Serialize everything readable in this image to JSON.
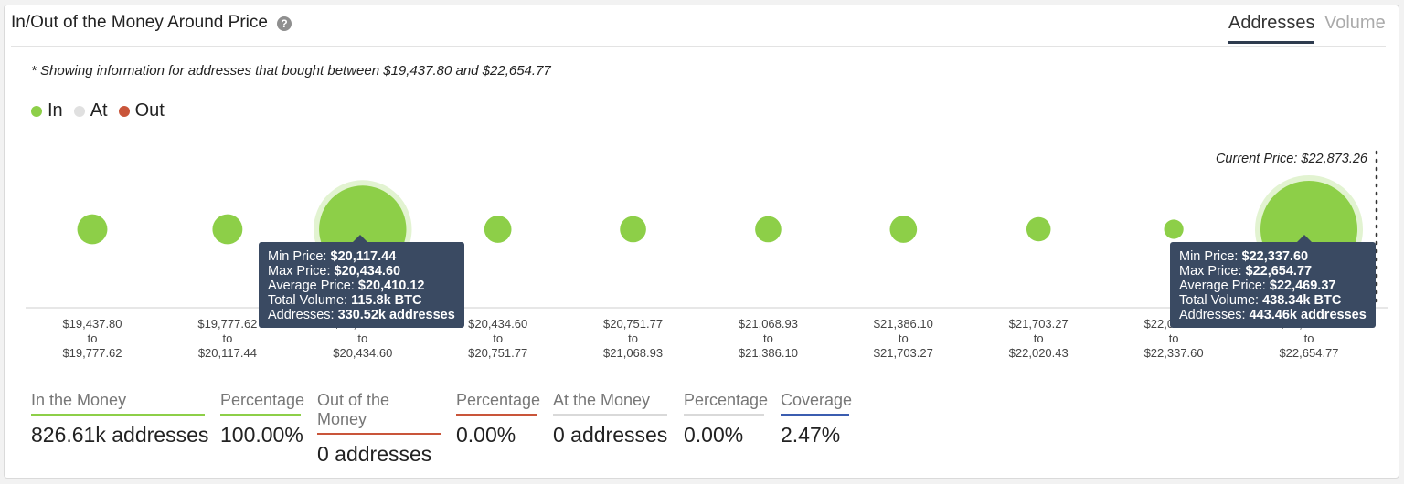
{
  "header": {
    "title": "In/Out of the Money Around Price",
    "help_glyph": "?",
    "tabs": [
      {
        "label": "Addresses",
        "active": true
      },
      {
        "label": "Volume",
        "active": false
      }
    ]
  },
  "note": "* Showing information for addresses that bought between $19,437.80 and $22,654.77",
  "legend": [
    {
      "label": "In",
      "color": "#8dcf48"
    },
    {
      "label": "At",
      "color": "#e0e0e0"
    },
    {
      "label": "Out",
      "color": "#c9553a"
    }
  ],
  "chart_data": {
    "type": "scatter",
    "title": "",
    "current_price_label": "Current Price: $22,873.26",
    "categories": [
      {
        "top": "$19,437.80",
        "mid": "to",
        "bottom": "$19,777.62"
      },
      {
        "top": "$19,777.62",
        "mid": "to",
        "bottom": "$20,117.44"
      },
      {
        "top": "$20,117.44",
        "mid": "to",
        "bottom": "$20,434.60"
      },
      {
        "top": "$20,434.60",
        "mid": "to",
        "bottom": "$20,751.77"
      },
      {
        "top": "$20,751.77",
        "mid": "to",
        "bottom": "$21,068.93"
      },
      {
        "top": "$21,068.93",
        "mid": "to",
        "bottom": "$21,386.10"
      },
      {
        "top": "$21,386.10",
        "mid": "to",
        "bottom": "$21,703.27"
      },
      {
        "top": "$21,703.27",
        "mid": "to",
        "bottom": "$22,020.43"
      },
      {
        "top": "$22,020.43",
        "mid": "to",
        "bottom": "$22,337.60"
      },
      {
        "top": "$22,337.60",
        "mid": "to",
        "bottom": "$22,654.77"
      }
    ],
    "series": [
      {
        "status": "In",
        "color": "#8dcf48",
        "relative_size": [
          0.31,
          0.31,
          0.9,
          0.28,
          0.27,
          0.27,
          0.28,
          0.25,
          0.2,
          1.0
        ],
        "highlighted": [
          2,
          9
        ]
      }
    ]
  },
  "tooltips": [
    {
      "min_label": "Min Price: ",
      "min": "$20,117.44",
      "max_label": "Max Price: ",
      "max": "$20,434.60",
      "avg_label": "Average Price: ",
      "avg": "$20,410.12",
      "vol_label": "Total Volume: ",
      "vol": "115.8k BTC",
      "addr_label": "Addresses: ",
      "addr": "330.52k addresses"
    },
    {
      "min_label": "Min Price: ",
      "min": "$22,337.60",
      "max_label": "Max Price: ",
      "max": "$22,654.77",
      "avg_label": "Average Price: ",
      "avg": "$22,469.37",
      "vol_label": "Total Volume: ",
      "vol": "438.34k BTC",
      "addr_label": "Addresses: ",
      "addr": "443.46k addresses"
    }
  ],
  "stats": [
    {
      "label": "In the Money",
      "value": "826.61k addresses",
      "color": "#8dcf48"
    },
    {
      "label": "Percentage",
      "value": "100.00%",
      "color": "#8dcf48"
    },
    {
      "label": "Out of the Money",
      "value": "0 addresses",
      "color": "#c9553a"
    },
    {
      "label": "Percentage",
      "value": "0.00%",
      "color": "#c9553a"
    },
    {
      "label": "At the Money",
      "value": "0 addresses",
      "color": "#d9d9d9"
    },
    {
      "label": "Percentage",
      "value": "0.00%",
      "color": "#d9d9d9"
    },
    {
      "label": "Coverage",
      "value": "2.47%",
      "color": "#3b5db0"
    }
  ]
}
